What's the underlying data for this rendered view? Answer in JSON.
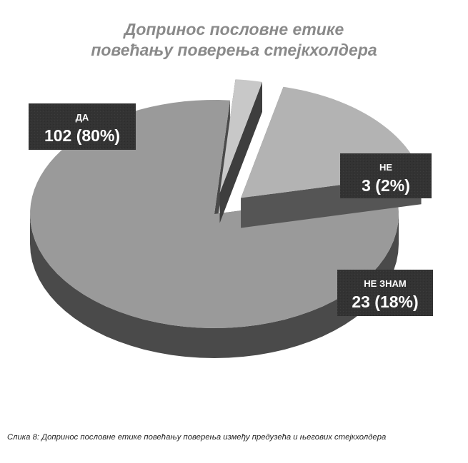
{
  "title_line1": "Допринос пословне етике",
  "title_line2": "повећању поверења стејкхолдера",
  "caption": "Слика 8: Допринос пословне етике повећању поверења између предузећа и његових стејкхолдера",
  "chart_data": {
    "type": "pie",
    "title": "Допринос пословне етике повећању поверења стејкхолдера",
    "slices": [
      {
        "label": "ДА",
        "value": 102,
        "percent": "80%",
        "value_label": "102 (80%)",
        "color": "#9a9a9a",
        "side_color": "#4a4a4a"
      },
      {
        "label": "НЕ",
        "value": 3,
        "percent": "2%",
        "value_label": "3 (2%)",
        "color": "#c8c8c8",
        "side_color": "#3e3e3e"
      },
      {
        "label": "НЕ ЗНАМ",
        "value": 23,
        "percent": "18%",
        "value_label": "23 (18%)",
        "color": "#b3b3b3",
        "side_color": "#555555"
      }
    ]
  },
  "colors": {
    "title": "#8a8a8a",
    "label_box": "#3a3a3a",
    "label_text": "#ffffff"
  }
}
